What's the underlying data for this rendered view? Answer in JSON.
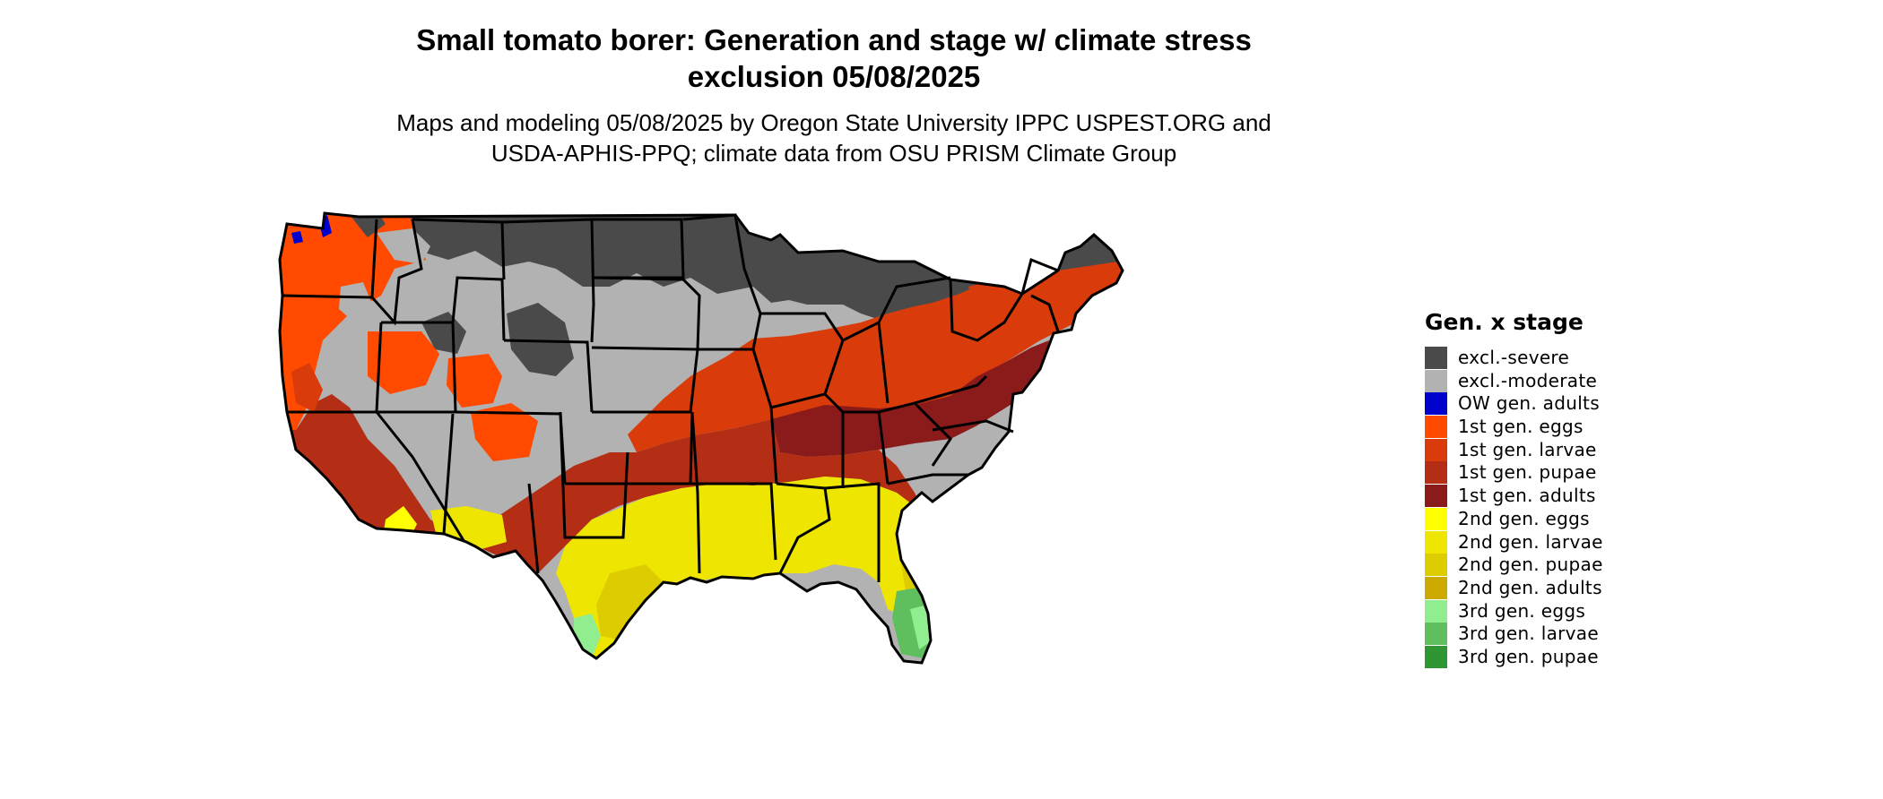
{
  "title_line1": "Small tomato borer: Generation and stage w/ climate stress",
  "title_line2": "exclusion 05/08/2025",
  "subtitle_line1": "Maps and modeling 05/08/2025 by Oregon State University IPPC USPEST.ORG and",
  "subtitle_line2": "USDA-APHIS-PPQ; climate data from OSU PRISM Climate Group",
  "legend": {
    "title": "Gen. x stage",
    "items": [
      {
        "label": "excl.-severe",
        "color": "#4a4a4a"
      },
      {
        "label": "excl.-moderate",
        "color": "#b2b2b2"
      },
      {
        "label": "OW gen. adults",
        "color": "#0000cc"
      },
      {
        "label": "1st gen. eggs",
        "color": "#ff4a00"
      },
      {
        "label": "1st gen. larvae",
        "color": "#d93c0a"
      },
      {
        "label": "1st gen. pupae",
        "color": "#b32e15"
      },
      {
        "label": "1st gen. adults",
        "color": "#8b1a1a"
      },
      {
        "label": "2nd gen. eggs",
        "color": "#ffff00"
      },
      {
        "label": "2nd gen. larvae",
        "color": "#eee600"
      },
      {
        "label": "2nd gen. pupae",
        "color": "#ddcc00"
      },
      {
        "label": "2nd gen. adults",
        "color": "#ccaa00"
      },
      {
        "label": "3rd gen. eggs",
        "color": "#90ee90"
      },
      {
        "label": "3rd gen. larvae",
        "color": "#5fbf5f"
      },
      {
        "label": "3rd gen. pupae",
        "color": "#2e9632"
      }
    ]
  }
}
